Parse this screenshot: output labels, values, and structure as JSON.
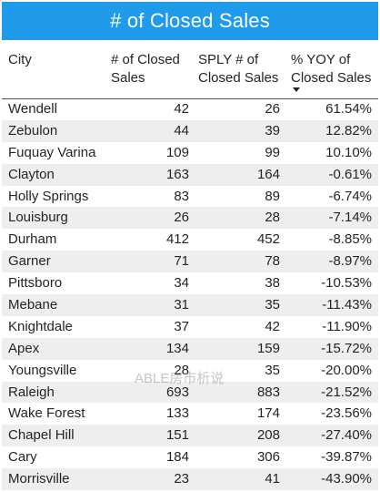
{
  "title": "# of Closed Sales",
  "columns": {
    "city": "City",
    "closed": "# of Closed Sales",
    "sply": "SPLY # of Closed Sales",
    "yoy": "% YOY of Closed Sales"
  },
  "sort": {
    "column": "yoy",
    "direction": "descending"
  },
  "rows": [
    {
      "city": "Wendell",
      "closed": "42",
      "sply": "26",
      "yoy": "61.54%"
    },
    {
      "city": "Zebulon",
      "closed": "44",
      "sply": "39",
      "yoy": "12.82%"
    },
    {
      "city": "Fuquay Varina",
      "closed": "109",
      "sply": "99",
      "yoy": "10.10%"
    },
    {
      "city": "Clayton",
      "closed": "163",
      "sply": "164",
      "yoy": "-0.61%"
    },
    {
      "city": "Holly Springs",
      "closed": "83",
      "sply": "89",
      "yoy": "-6.74%"
    },
    {
      "city": "Louisburg",
      "closed": "26",
      "sply": "28",
      "yoy": "-7.14%"
    },
    {
      "city": "Durham",
      "closed": "412",
      "sply": "452",
      "yoy": "-8.85%"
    },
    {
      "city": "Garner",
      "closed": "71",
      "sply": "78",
      "yoy": "-8.97%"
    },
    {
      "city": "Pittsboro",
      "closed": "34",
      "sply": "38",
      "yoy": "-10.53%"
    },
    {
      "city": "Mebane",
      "closed": "31",
      "sply": "35",
      "yoy": "-11.43%"
    },
    {
      "city": "Knightdale",
      "closed": "37",
      "sply": "42",
      "yoy": "-11.90%"
    },
    {
      "city": "Apex",
      "closed": "134",
      "sply": "159",
      "yoy": "-15.72%"
    },
    {
      "city": "Youngsville",
      "closed": "28",
      "sply": "35",
      "yoy": "-20.00%"
    },
    {
      "city": "Raleigh",
      "closed": "693",
      "sply": "883",
      "yoy": "-21.52%"
    },
    {
      "city": "Wake Forest",
      "closed": "133",
      "sply": "174",
      "yoy": "-23.56%"
    },
    {
      "city": "Chapel Hill",
      "closed": "151",
      "sply": "208",
      "yoy": "-27.40%"
    },
    {
      "city": "Cary",
      "closed": "184",
      "sply": "306",
      "yoy": "-39.87%"
    },
    {
      "city": "Morrisville",
      "closed": "23",
      "sply": "41",
      "yoy": "-43.90%"
    }
  ],
  "watermark": "ABLE房市析说",
  "colors": {
    "title_bg": "#1f9bea",
    "title_text": "#ffffff",
    "row_alt": "#eeeeee",
    "text": "#252423"
  }
}
